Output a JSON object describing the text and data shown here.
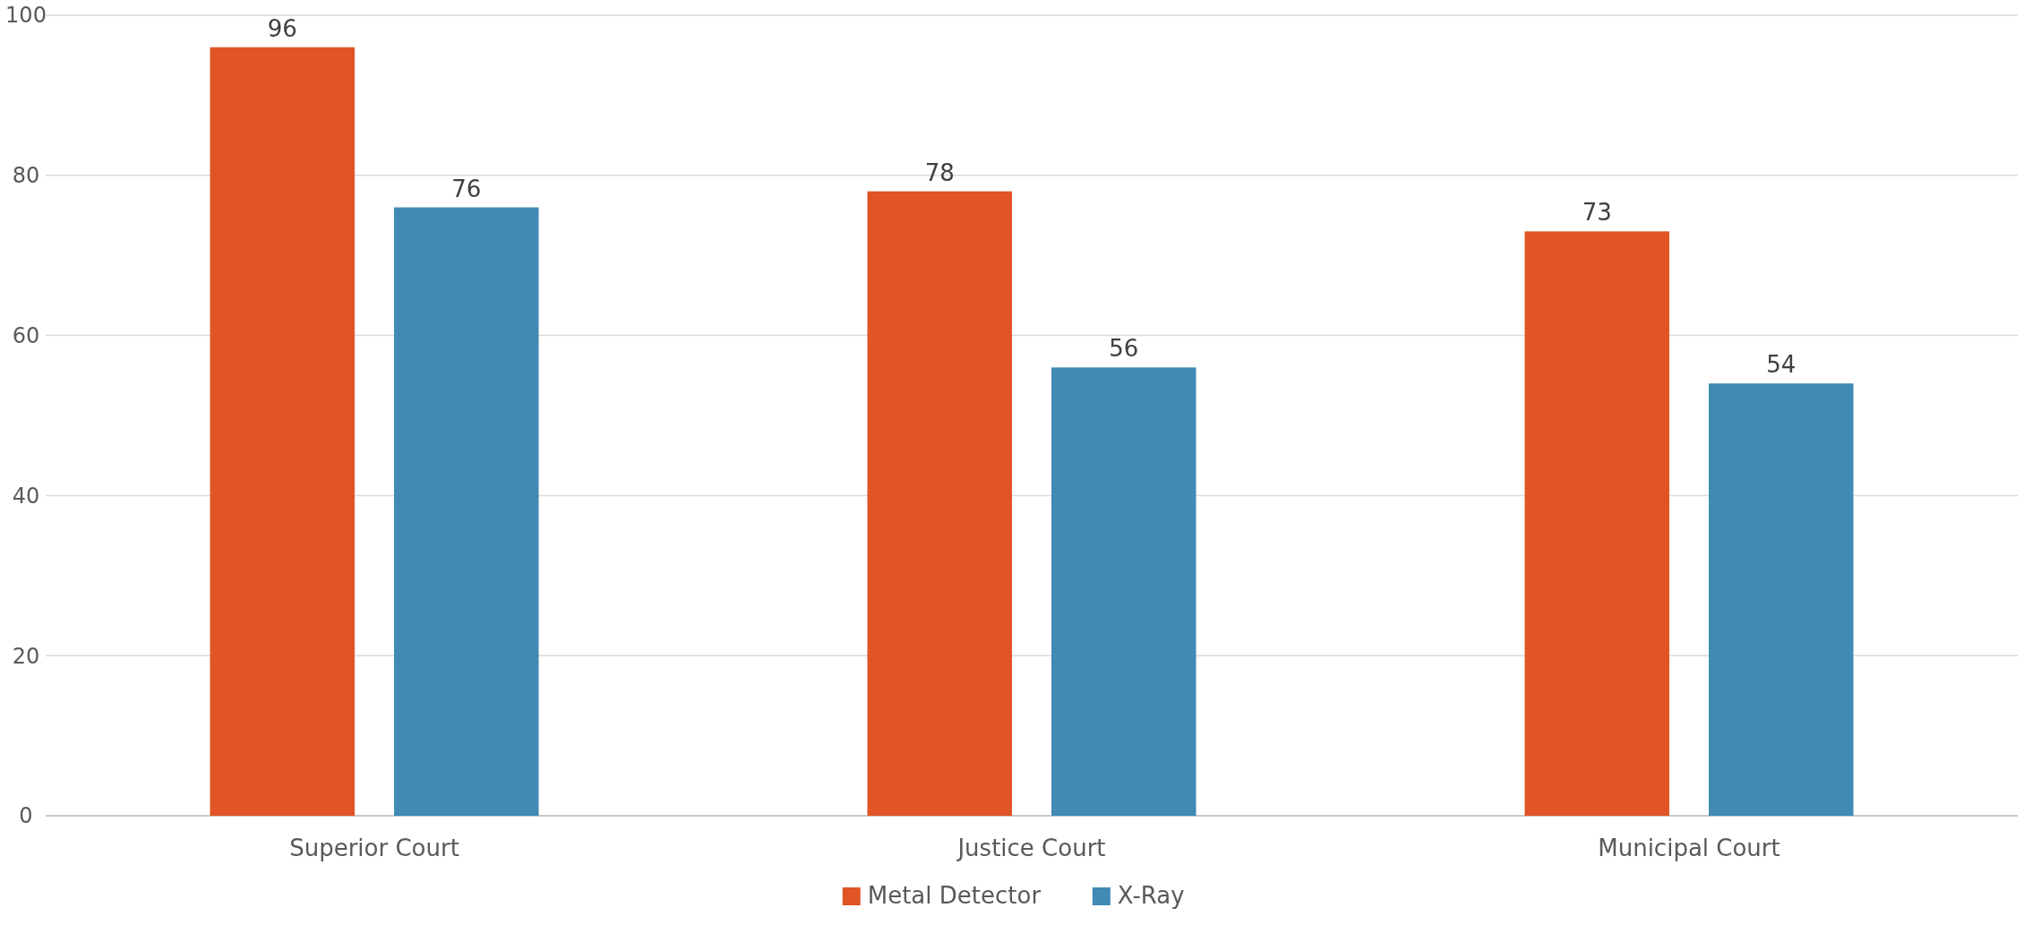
{
  "chart_data": {
    "type": "bar",
    "categories": [
      "Superior Court",
      "Justice Court",
      "Municipal Court"
    ],
    "series": [
      {
        "name": "Metal Detector",
        "color": "#e05426",
        "values": [
          96,
          78,
          73
        ]
      },
      {
        "name": "X-Ray",
        "color": "#418ab3",
        "values": [
          76,
          56,
          54
        ]
      }
    ],
    "ylim": [
      0,
      100
    ],
    "yticks": [
      0,
      20,
      40,
      60,
      80,
      100
    ],
    "grid": "y",
    "legend": "bottom",
    "data_labels": true
  }
}
